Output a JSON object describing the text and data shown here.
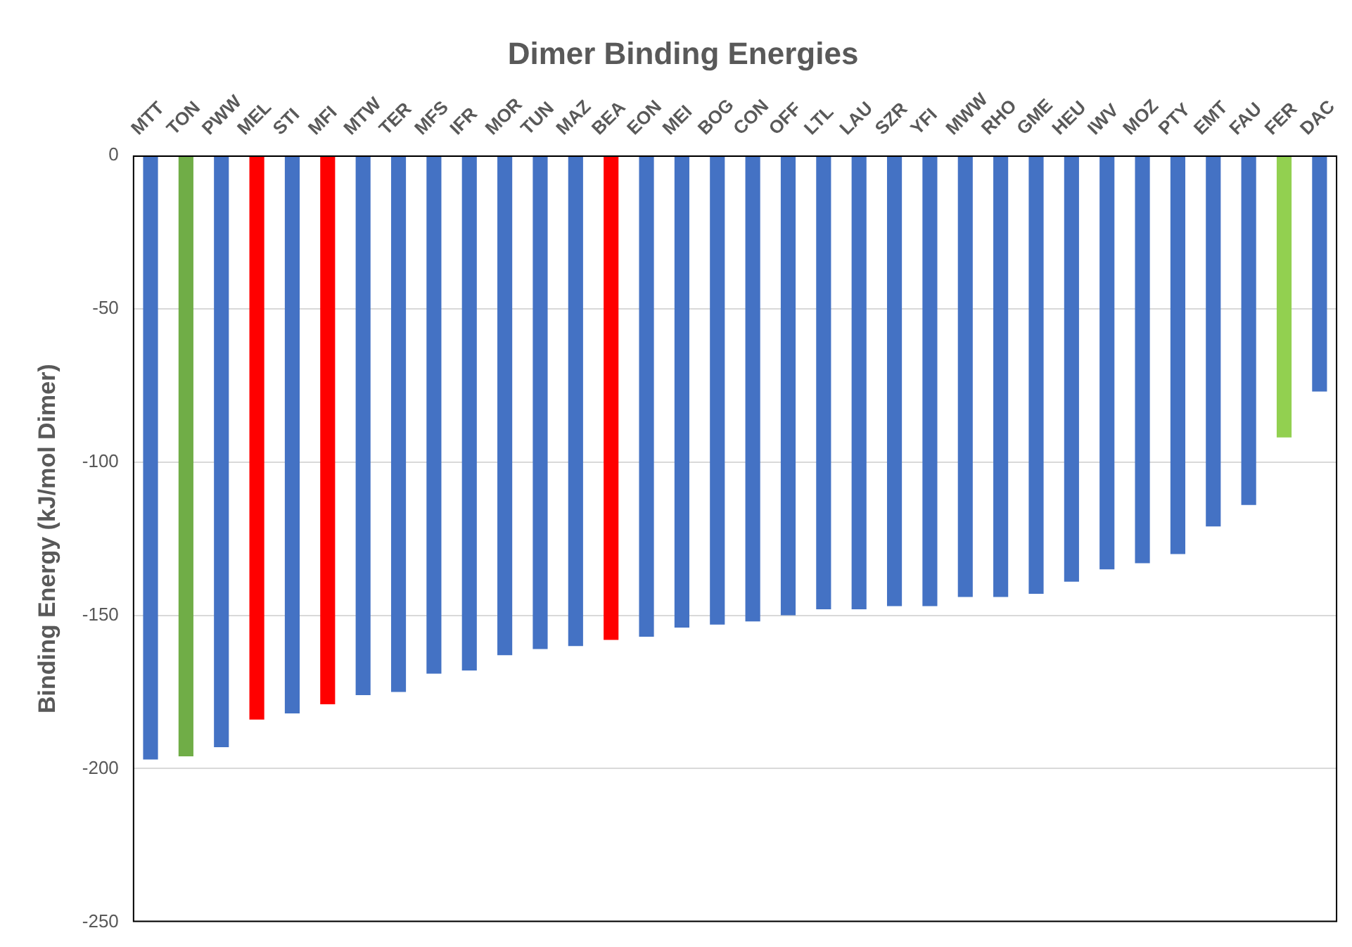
{
  "chart_data": {
    "type": "bar",
    "title": "Dimer Binding Energies",
    "ylabel": "Binding Energy (kJ/mol Dimer)",
    "categories": [
      "MTT",
      "TON",
      "PWW",
      "MEL",
      "STI",
      "MFI",
      "MTW",
      "TER",
      "MFS",
      "IFR",
      "MOR",
      "TUN",
      "MAZ",
      "BEA",
      "EON",
      "MEI",
      "BOG",
      "CON",
      "OFF",
      "LTL",
      "LAU",
      "SZR",
      "YFI",
      "MWW",
      "RHO",
      "GME",
      "HEU",
      "IWV",
      "MOZ",
      "PTY",
      "EMT",
      "FAU",
      "FER",
      "DAC"
    ],
    "values": [
      -197,
      -196,
      -193,
      -184,
      -182,
      -179,
      -176,
      -175,
      -169,
      -168,
      -163,
      -161,
      -160,
      -158,
      -157,
      -154,
      -153,
      -152,
      -150,
      -148,
      -148,
      -147,
      -147,
      -144,
      -144,
      -143,
      -139,
      -135,
      -133,
      -130,
      -121,
      -114,
      -92,
      -77
    ],
    "colors": [
      "#4472c4",
      "#70ad47",
      "#4472c4",
      "#ff0000",
      "#4472c4",
      "#ff0000",
      "#4472c4",
      "#4472c4",
      "#4472c4",
      "#4472c4",
      "#4472c4",
      "#4472c4",
      "#4472c4",
      "#ff0000",
      "#4472c4",
      "#4472c4",
      "#4472c4",
      "#4472c4",
      "#4472c4",
      "#4472c4",
      "#4472c4",
      "#4472c4",
      "#4472c4",
      "#4472c4",
      "#4472c4",
      "#4472c4",
      "#4472c4",
      "#4472c4",
      "#4472c4",
      "#4472c4",
      "#4472c4",
      "#4472c4",
      "#92d050",
      "#4472c4"
    ],
    "ylim": [
      -250,
      0
    ],
    "yticks": [
      -250,
      -200,
      -150,
      -100,
      -50,
      0
    ],
    "grid": "y",
    "legend": false
  }
}
